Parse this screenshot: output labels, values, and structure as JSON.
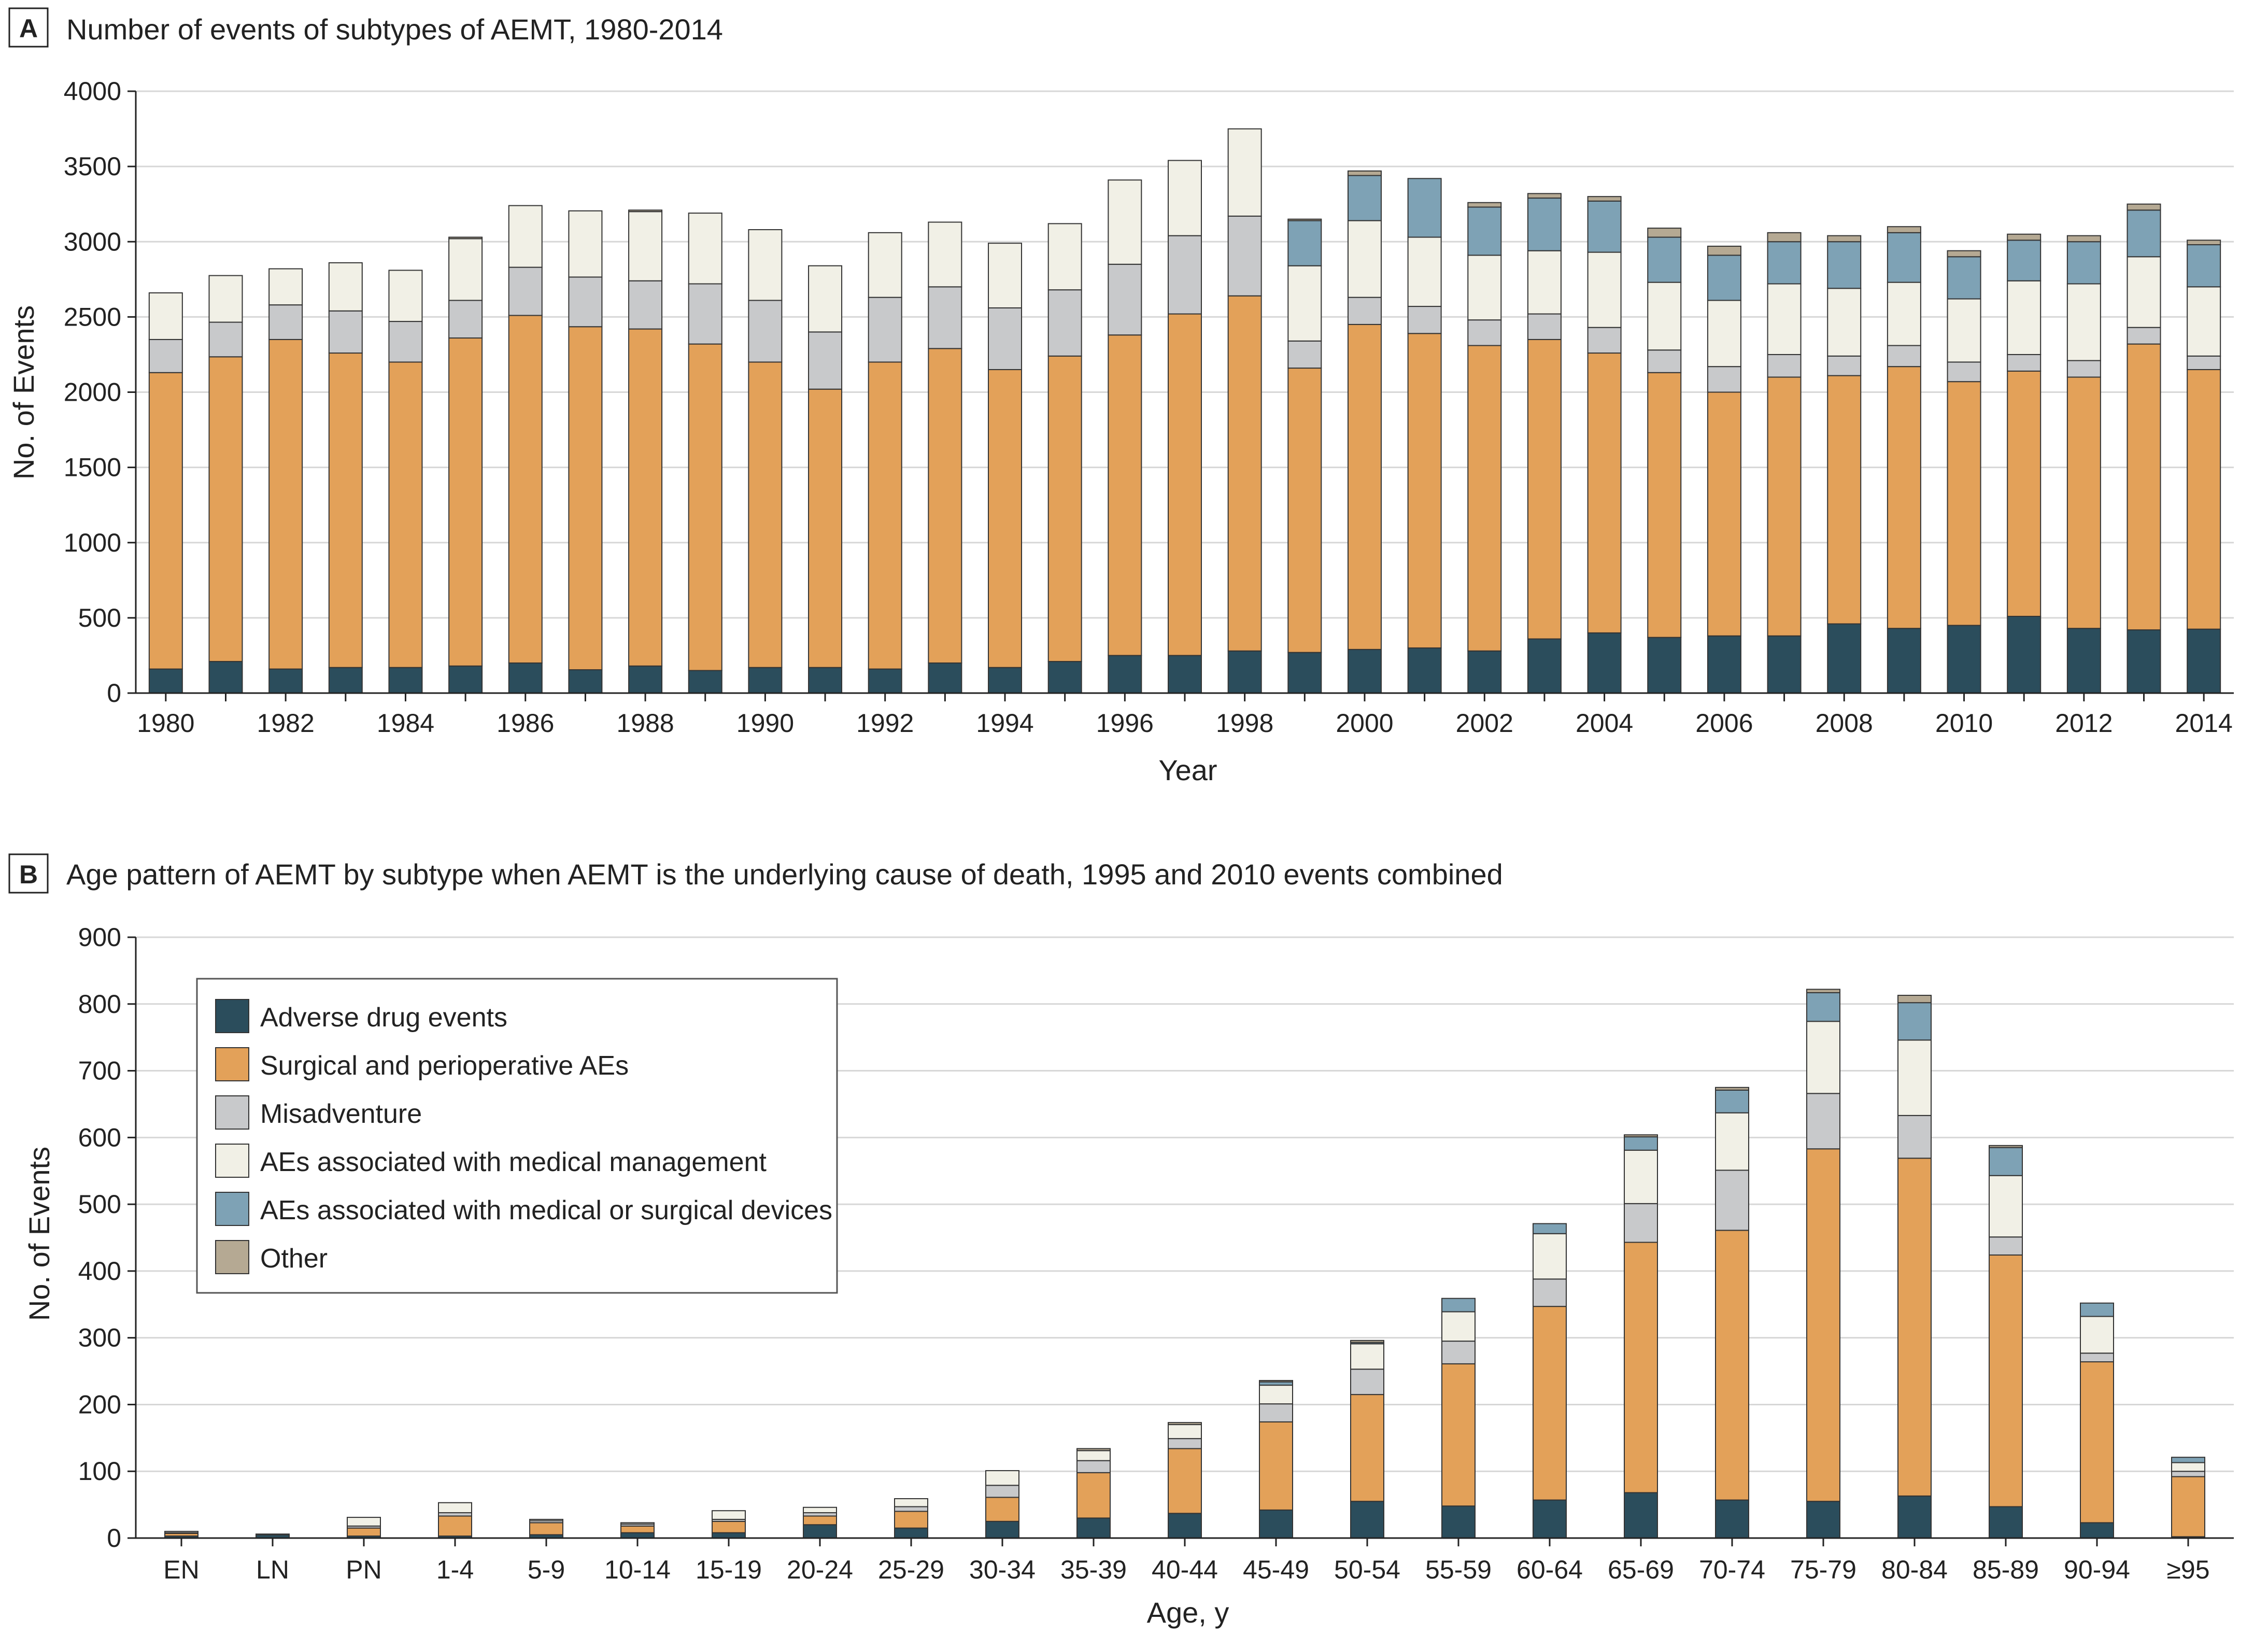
{
  "colors": {
    "adverse_drug": "#2b4d5c",
    "surgical": "#e3a159",
    "misadventure": "#c8c9cb",
    "management": "#f1f0e6",
    "devices": "#7ea2b5",
    "other": "#b5a993",
    "grid": "#d7d7d7",
    "axis": "#222222",
    "bar_stroke": "#333333"
  },
  "chart_data": [
    {
      "id": "A",
      "panel_label": "A",
      "title": "Number of events of subtypes of AEMT, 1980-2014",
      "type": "bar",
      "stacked": true,
      "xlabel": "Year",
      "ylabel": "No. of Events",
      "ylim": [
        0,
        4000
      ],
      "yticks": [
        0,
        500,
        1000,
        1500,
        2000,
        2500,
        3000,
        3500,
        4000
      ],
      "grid": true,
      "categories": [
        "1980",
        "1981",
        "1982",
        "1983",
        "1984",
        "1985",
        "1986",
        "1987",
        "1988",
        "1989",
        "1990",
        "1991",
        "1992",
        "1993",
        "1994",
        "1995",
        "1996",
        "1997",
        "1998",
        "1999",
        "2000",
        "2001",
        "2002",
        "2003",
        "2004",
        "2005",
        "2006",
        "2007",
        "2008",
        "2009",
        "2010",
        "2011",
        "2012",
        "2013",
        "2014"
      ],
      "category_labels": [
        "1980",
        "",
        "1982",
        "",
        "1984",
        "",
        "1986",
        "",
        "1988",
        "",
        "1990",
        "",
        "1992",
        "",
        "1994",
        "",
        "1996",
        "",
        "1998",
        "",
        "2000",
        "",
        "2002",
        "",
        "2004",
        "",
        "2006",
        "",
        "2008",
        "",
        "2010",
        "",
        "2012",
        "",
        "2014"
      ],
      "series": [
        {
          "name": "Adverse drug events",
          "color_key": "adverse_drug",
          "values": [
            160,
            210,
            160,
            170,
            170,
            180,
            200,
            155,
            180,
            150,
            170,
            170,
            160,
            200,
            170,
            210,
            250,
            250,
            280,
            270,
            290,
            300,
            280,
            360,
            400,
            370,
            380,
            380,
            460,
            430,
            450,
            510,
            430,
            420,
            425
          ]
        },
        {
          "name": "Surgical and perioperative AEs",
          "color_key": "surgical",
          "values": [
            1970,
            2025,
            2190,
            2090,
            2030,
            2180,
            2310,
            2280,
            2240,
            2170,
            2030,
            1850,
            2040,
            2090,
            1980,
            2030,
            2130,
            2270,
            2360,
            1890,
            2160,
            2090,
            2030,
            1990,
            1860,
            1760,
            1620,
            1720,
            1650,
            1740,
            1620,
            1630,
            1670,
            1900,
            1725
          ]
        },
        {
          "name": "Misadventure",
          "color_key": "misadventure",
          "values": [
            220,
            230,
            230,
            280,
            270,
            250,
            320,
            330,
            320,
            400,
            410,
            380,
            430,
            410,
            410,
            440,
            470,
            520,
            530,
            180,
            180,
            180,
            170,
            170,
            170,
            150,
            170,
            150,
            130,
            140,
            130,
            110,
            110,
            110,
            90
          ]
        },
        {
          "name": "AEs associated with medical management",
          "color_key": "management",
          "values": [
            310,
            310,
            240,
            320,
            340,
            410,
            410,
            440,
            460,
            470,
            470,
            440,
            430,
            430,
            430,
            440,
            560,
            500,
            580,
            500,
            510,
            460,
            430,
            420,
            500,
            450,
            440,
            470,
            450,
            420,
            420,
            490,
            510,
            470,
            460
          ]
        },
        {
          "name": "AEs associated with medical or surgical devices",
          "color_key": "devices",
          "values": [
            0,
            0,
            0,
            0,
            0,
            0,
            0,
            0,
            0,
            0,
            0,
            0,
            0,
            0,
            0,
            0,
            0,
            0,
            0,
            300,
            300,
            390,
            320,
            350,
            340,
            300,
            300,
            280,
            310,
            330,
            280,
            270,
            280,
            310,
            280
          ]
        },
        {
          "name": "Other",
          "color_key": "other",
          "values": [
            0,
            0,
            0,
            0,
            0,
            10,
            0,
            0,
            10,
            0,
            0,
            0,
            0,
            0,
            0,
            0,
            0,
            0,
            0,
            10,
            30,
            0,
            30,
            30,
            30,
            60,
            60,
            60,
            40,
            40,
            40,
            40,
            40,
            40,
            30
          ]
        }
      ]
    },
    {
      "id": "B",
      "panel_label": "B",
      "title": "Age pattern of AEMT by subtype when AEMT is the underlying cause of death, 1995 and 2010 events combined",
      "type": "bar",
      "stacked": true,
      "xlabel": "Age, y",
      "ylabel": "No. of Events",
      "ylim": [
        0,
        900
      ],
      "yticks": [
        0,
        100,
        200,
        300,
        400,
        500,
        600,
        700,
        800,
        900
      ],
      "grid": true,
      "legend_position": "top-left",
      "categories": [
        "EN",
        "LN",
        "PN",
        "1-4",
        "5-9",
        "10-14",
        "15-19",
        "20-24",
        "25-29",
        "30-34",
        "35-39",
        "40-44",
        "45-49",
        "50-54",
        "55-59",
        "60-64",
        "65-69",
        "70-74",
        "75-79",
        "80-84",
        "85-89",
        "90-94",
        "≥95"
      ],
      "series": [
        {
          "name": "Adverse drug events",
          "color_key": "adverse_drug",
          "values": [
            3,
            5,
            3,
            3,
            5,
            8,
            8,
            20,
            15,
            25,
            30,
            37,
            42,
            55,
            48,
            57,
            68,
            57,
            55,
            63,
            47,
            23,
            2
          ]
        },
        {
          "name": "Surgical and perioperative AEs",
          "color_key": "surgical",
          "values": [
            4,
            1,
            12,
            30,
            18,
            10,
            17,
            13,
            25,
            36,
            68,
            97,
            132,
            160,
            213,
            290,
            375,
            404,
            528,
            506,
            377,
            241,
            90
          ]
        },
        {
          "name": "Misadventure",
          "color_key": "misadventure",
          "values": [
            1,
            0,
            3,
            5,
            3,
            3,
            3,
            5,
            7,
            18,
            18,
            15,
            27,
            38,
            34,
            41,
            58,
            90,
            83,
            64,
            27,
            13,
            8
          ]
        },
        {
          "name": "AEs associated with medical management",
          "color_key": "management",
          "values": [
            2,
            0,
            13,
            15,
            2,
            2,
            13,
            8,
            12,
            22,
            15,
            21,
            28,
            38,
            44,
            68,
            80,
            86,
            108,
            113,
            92,
            55,
            13
          ]
        },
        {
          "name": "AEs associated with medical or surgical devices",
          "color_key": "devices",
          "values": [
            0,
            0,
            0,
            0,
            0,
            0,
            0,
            0,
            0,
            0,
            0,
            0,
            5,
            2,
            20,
            15,
            20,
            34,
            43,
            56,
            42,
            20,
            8
          ]
        },
        {
          "name": "Other",
          "color_key": "other",
          "values": [
            0,
            0,
            0,
            0,
            0,
            0,
            0,
            0,
            0,
            0,
            3,
            3,
            2,
            3,
            0,
            0,
            3,
            4,
            5,
            11,
            3,
            0,
            0
          ]
        }
      ]
    }
  ],
  "legend": {
    "items": [
      {
        "label": "Adverse drug events",
        "color_key": "adverse_drug"
      },
      {
        "label": "Surgical and perioperative AEs",
        "color_key": "surgical"
      },
      {
        "label": "Misadventure",
        "color_key": "misadventure"
      },
      {
        "label": "AEs associated with medical management",
        "color_key": "management"
      },
      {
        "label": "AEs associated with medical or surgical devices",
        "color_key": "devices"
      },
      {
        "label": "Other",
        "color_key": "other"
      }
    ]
  }
}
